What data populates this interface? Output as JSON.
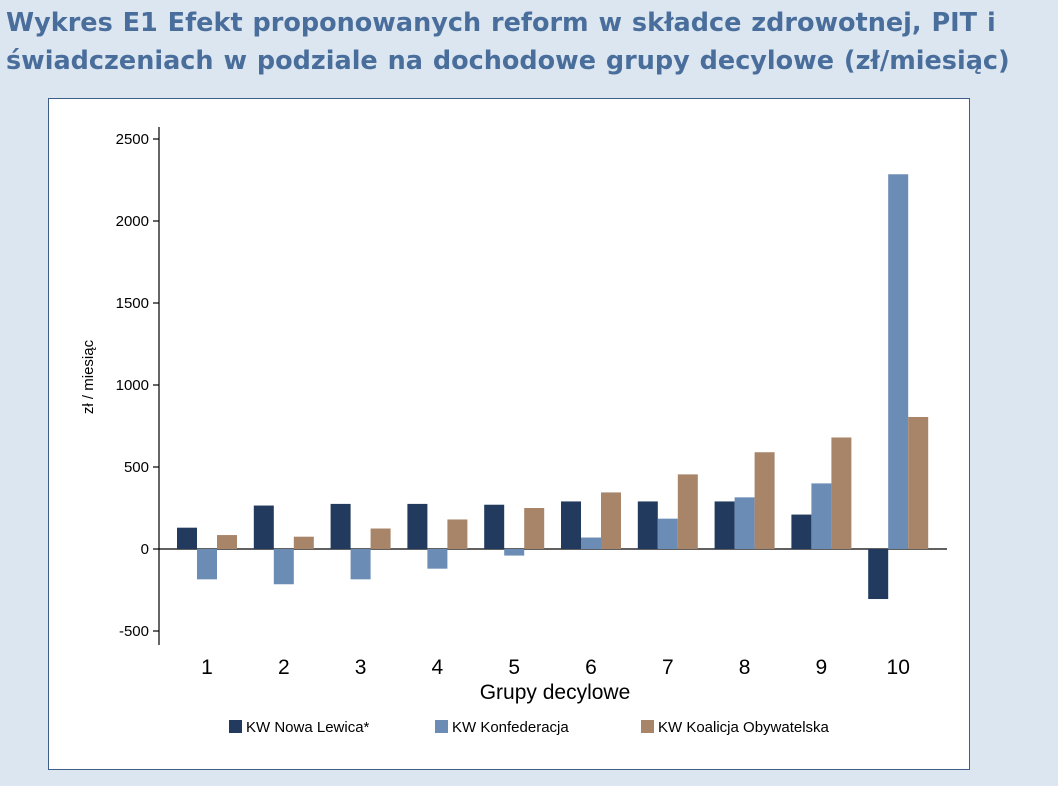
{
  "title": {
    "line1": "Wykres E1 Efekt proponowanych reform w składce zdrowotnej, PIT i",
    "line2": "świadczeniach w podziale na dochodowe grupy decylowe (zł/miesiąc)"
  },
  "colors": {
    "background": "#dce6f0",
    "title": "#4a6e9c",
    "frame": "#3f5f86"
  },
  "chart_data": {
    "type": "bar",
    "xlabel": "Grupy decylowe",
    "ylabel": "zł / miesiąc",
    "categories": [
      "1",
      "2",
      "3",
      "4",
      "5",
      "6",
      "7",
      "8",
      "9",
      "10"
    ],
    "ylim": [
      -500,
      2500
    ],
    "yticks": [
      -500,
      0,
      500,
      1000,
      1500,
      2000,
      2500
    ],
    "grid": false,
    "legend_position": "bottom",
    "series": [
      {
        "name": "KW Nowa Lewica*",
        "color": "#213a5e",
        "values": [
          130,
          265,
          275,
          275,
          270,
          290,
          290,
          290,
          210,
          -305
        ]
      },
      {
        "name": "KW Konfederacja",
        "color": "#6b8cb5",
        "values": [
          -185,
          -215,
          -185,
          -120,
          -40,
          70,
          185,
          315,
          400,
          2285
        ]
      },
      {
        "name": "KW Koalicja Obywatelska",
        "color": "#a88468",
        "values": [
          85,
          75,
          125,
          180,
          250,
          345,
          455,
          590,
          680,
          805
        ]
      }
    ]
  }
}
